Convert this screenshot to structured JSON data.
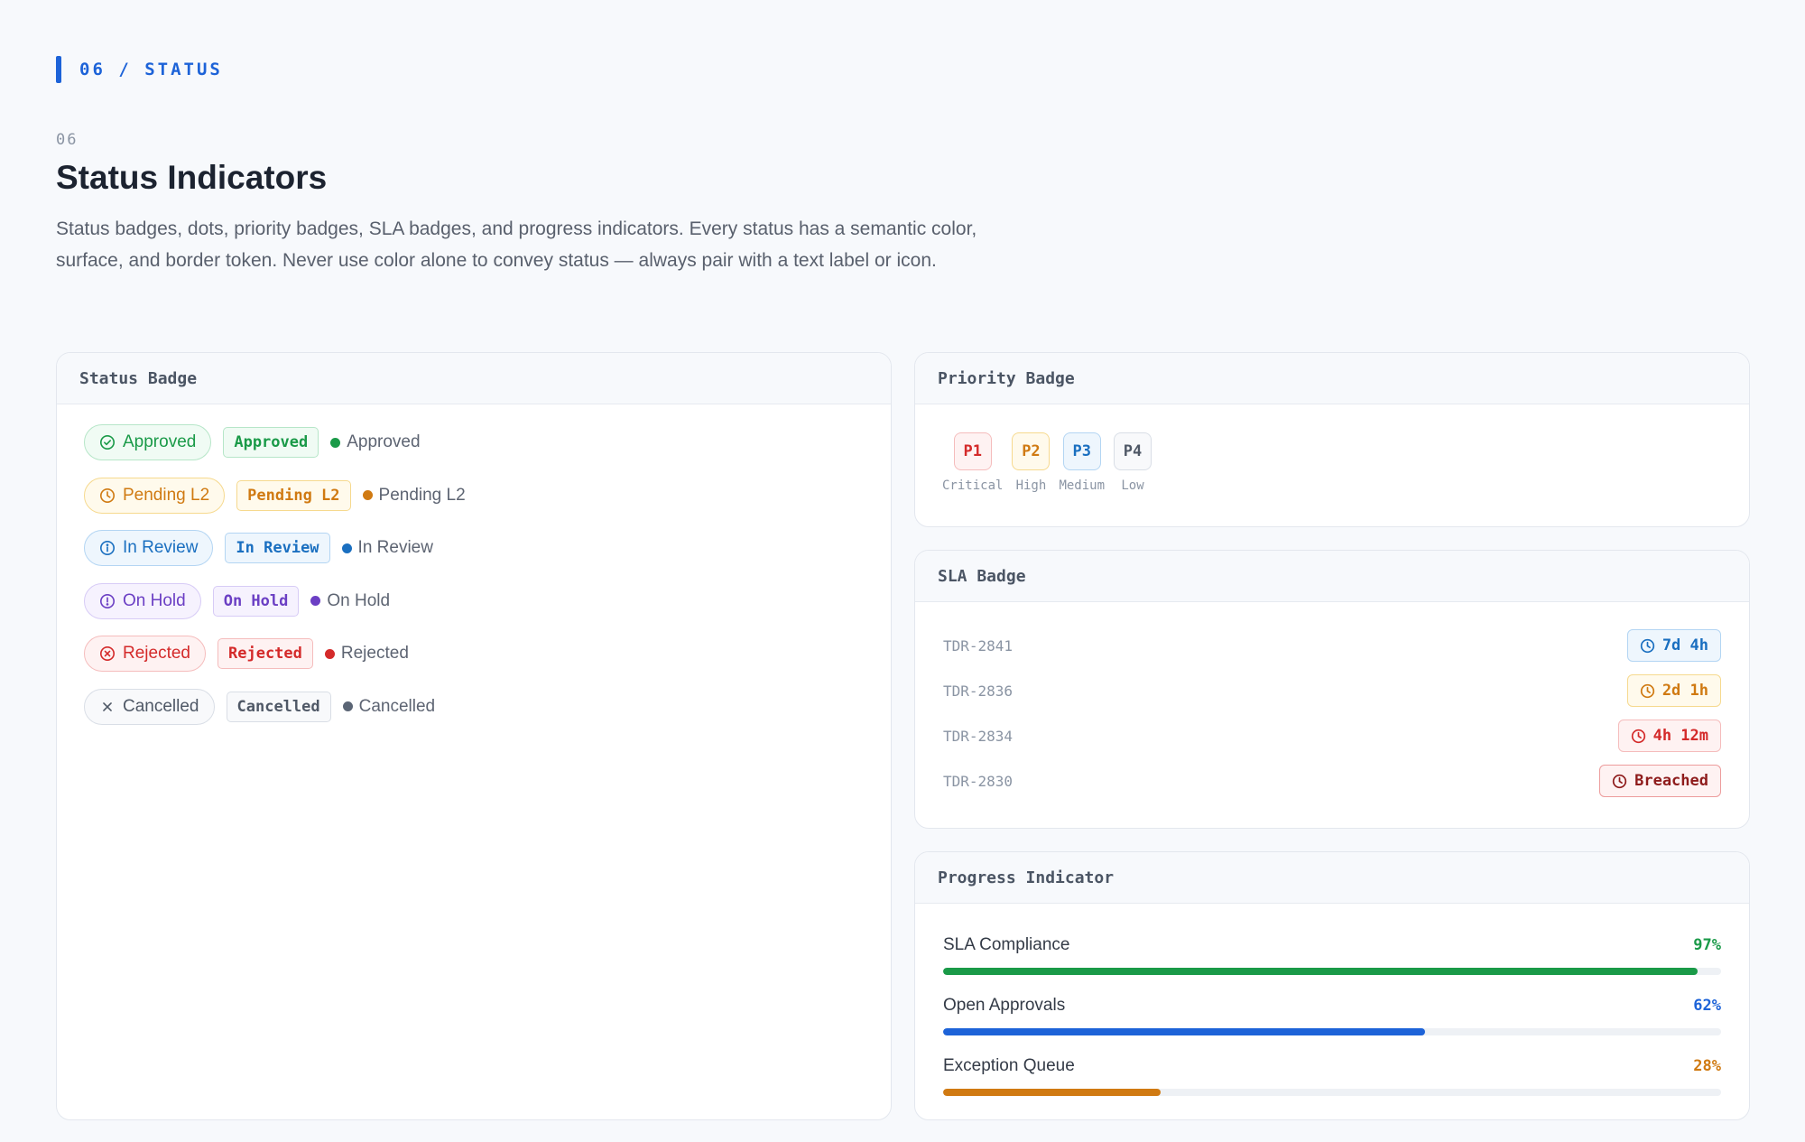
{
  "header": {
    "eyebrow": "06 / STATUS",
    "section_number": "06",
    "title": "Status Indicators",
    "description": "Status badges, dots, priority badges, SLA badges, and progress indicators. Every status has a semantic color, surface, and border token. Never use color alone to convey status — always pair with a text label or icon."
  },
  "status_badge": {
    "title": "Status Badge",
    "rows": [
      {
        "label": "Approved",
        "icon": "check-circle-icon",
        "color": "#1a9a48"
      },
      {
        "label": "Pending L2",
        "icon": "clock-icon",
        "color": "#d07a12"
      },
      {
        "label": "In Review",
        "icon": "info-circle-icon",
        "color": "#1a6fc0"
      },
      {
        "label": "On Hold",
        "icon": "alert-circle-icon",
        "color": "#6b3fc4"
      },
      {
        "label": "Rejected",
        "icon": "x-circle-icon",
        "color": "#d42a2a"
      },
      {
        "label": "Cancelled",
        "icon": "close-icon",
        "color": "#5b6575"
      }
    ]
  },
  "priority_badge": {
    "title": "Priority Badge",
    "items": [
      {
        "code": "P1",
        "label": "Critical",
        "color": "#d42a2a"
      },
      {
        "code": "P2",
        "label": "High",
        "color": "#d07a12"
      },
      {
        "code": "P3",
        "label": "Medium",
        "color": "#1a6fc0"
      },
      {
        "code": "P4",
        "label": "Low",
        "color": "#4f5866"
      }
    ]
  },
  "sla_badge": {
    "title": "SLA Badge",
    "rows": [
      {
        "id": "TDR-2841",
        "value": "7d 4h",
        "color": "#1a6fc0"
      },
      {
        "id": "TDR-2836",
        "value": "2d 1h",
        "color": "#d07a12"
      },
      {
        "id": "TDR-2834",
        "value": "4h 12m",
        "color": "#d42a2a"
      },
      {
        "id": "TDR-2830",
        "value": "Breached",
        "color": "#8e1b1b"
      }
    ]
  },
  "progress_indicator": {
    "title": "Progress Indicator",
    "items": [
      {
        "label": "SLA Compliance",
        "value": "97%",
        "percent": 97,
        "color": "#1a9a48"
      },
      {
        "label": "Open Approvals",
        "value": "62%",
        "percent": 62,
        "color": "#1d63d8"
      },
      {
        "label": "Exception Queue",
        "value": "28%",
        "percent": 28,
        "color": "#d07a12"
      }
    ]
  }
}
